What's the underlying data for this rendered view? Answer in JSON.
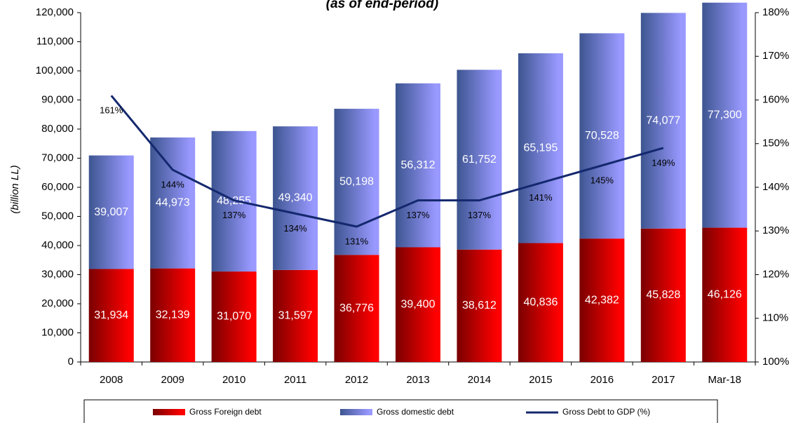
{
  "chart_data": {
    "type": "bar-line",
    "subtitle": "(as of end-period)",
    "ylabel": "(billion LL)",
    "categories": [
      "2008",
      "2009",
      "2010",
      "2011",
      "2012",
      "2013",
      "2014",
      "2015",
      "2016",
      "2017",
      "Mar-18"
    ],
    "stacked": true,
    "series": [
      {
        "name": "Gross  Foreign debt",
        "type": "bar",
        "color": "#ff0000",
        "values": [
          31934,
          32139,
          31070,
          31597,
          36776,
          39400,
          38612,
          40836,
          42382,
          45828,
          46126
        ],
        "value_labels": [
          "31,934",
          "32,139",
          "31,070",
          "31,597",
          "36,776",
          "39,400",
          "38,612",
          "40,836",
          "42,382",
          "45,828",
          "46,126"
        ]
      },
      {
        "name": "Gross domestic debt",
        "type": "bar",
        "color": "#9999ff",
        "values": [
          39007,
          44973,
          48255,
          49340,
          50198,
          56312,
          61752,
          65195,
          70528,
          74077,
          77300
        ],
        "value_labels": [
          "39,007",
          "44,973",
          "48,255",
          "49,340",
          "50,198",
          "56,312",
          "61,752",
          "65,195",
          "70,528",
          "74,077",
          "77,300"
        ]
      },
      {
        "name": "Gross  Debt to GDP (%)",
        "type": "line",
        "axis": "y2",
        "color": "#14286e",
        "values": [
          161,
          144,
          137,
          134,
          131,
          137,
          137,
          141,
          145,
          149,
          null
        ],
        "value_labels": [
          "161%",
          "144%",
          "137%",
          "134%",
          "131%",
          "137%",
          "137%",
          "141%",
          "145%",
          "149%",
          null
        ]
      }
    ],
    "ylim": [
      0,
      120000
    ],
    "yticks": [
      0,
      {
        "value": 10000,
        "label": "10,000"
      },
      {
        "value": 20000,
        "label": "20,000"
      },
      {
        "value": 30000,
        "label": "30,000"
      },
      {
        "value": 40000,
        "label": "40,000"
      },
      {
        "value": 50000,
        "label": "50,000"
      },
      {
        "value": 60000,
        "label": "60,000"
      },
      {
        "value": 70000,
        "label": "70,000"
      },
      {
        "value": 80000,
        "label": "80,000"
      },
      {
        "value": 90000,
        "label": "90,000"
      },
      {
        "value": 100000,
        "label": "100,000"
      },
      {
        "value": 110000,
        "label": "110,000"
      },
      {
        "value": 120000,
        "label": "120,000"
      }
    ],
    "y2lim": [
      100,
      180
    ],
    "y2ticks": [
      {
        "value": 100,
        "label": "100%"
      },
      {
        "value": 110,
        "label": "110%"
      },
      {
        "value": 120,
        "label": "120%"
      },
      {
        "value": 130,
        "label": "130%"
      },
      {
        "value": 140,
        "label": "140%"
      },
      {
        "value": 150,
        "label": "150%"
      },
      {
        "value": 160,
        "label": "160%"
      },
      {
        "value": 170,
        "label": "170%"
      },
      {
        "value": 180,
        "label": "180%"
      }
    ],
    "legend": "bottom"
  }
}
